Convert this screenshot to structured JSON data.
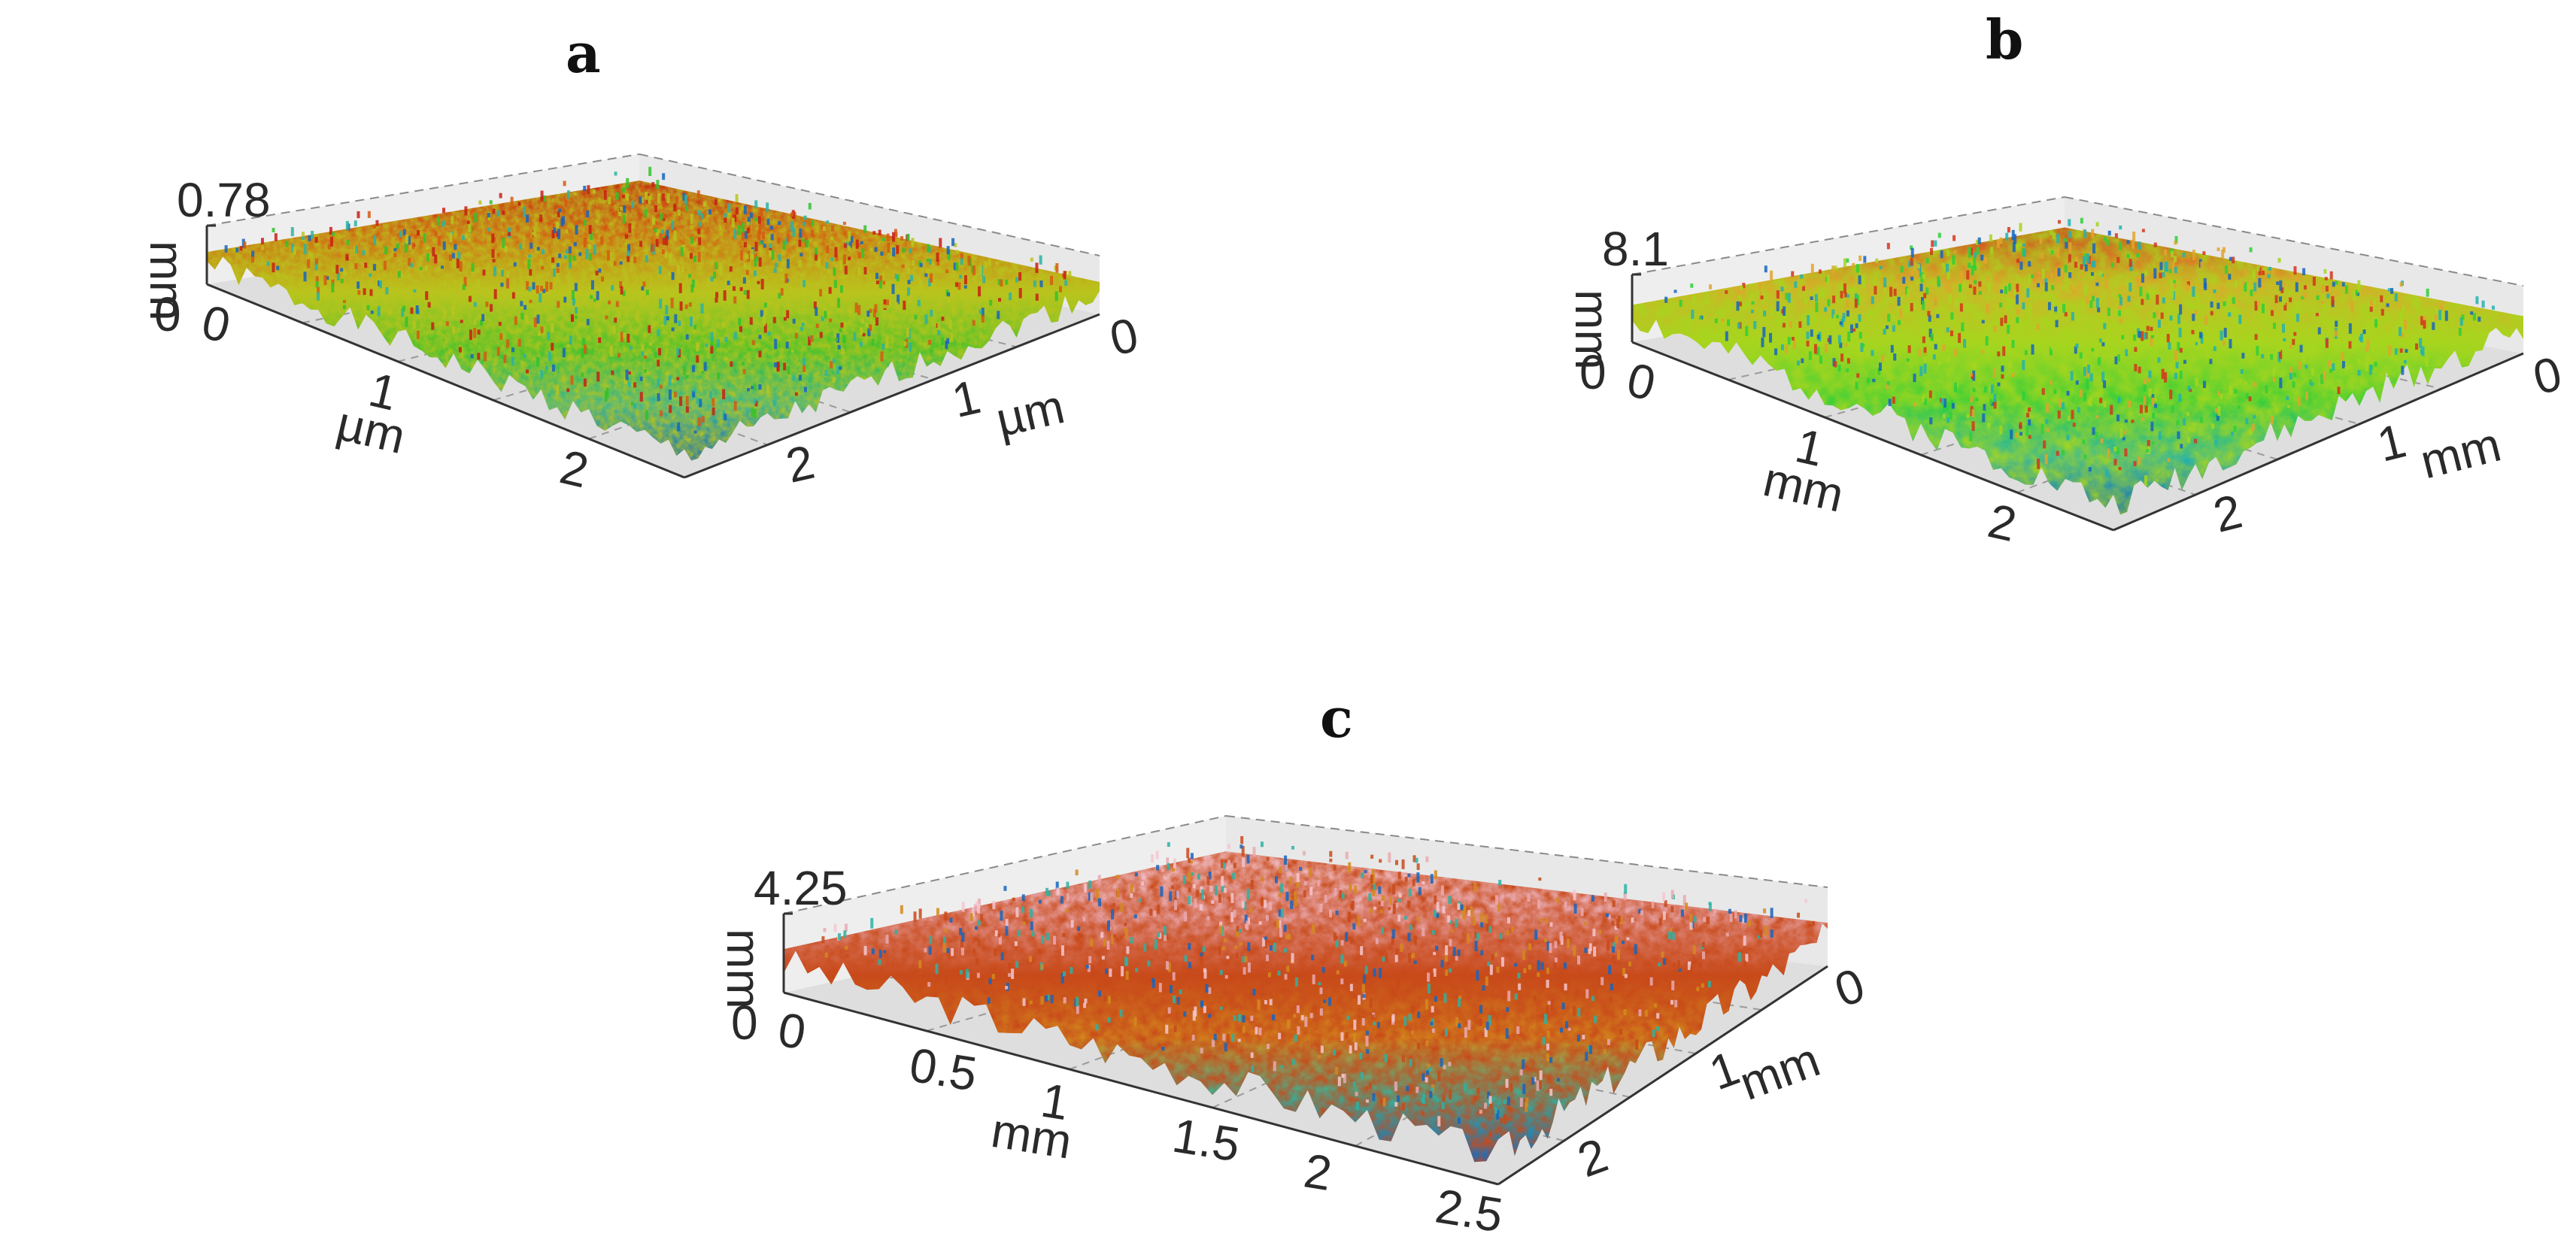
{
  "panels": [
    {
      "label": "a",
      "z_max": "0.78",
      "z_min": "0",
      "z_unit": "mm",
      "x_ticks": [
        "0",
        "1",
        "2"
      ],
      "x_unit": "µm",
      "y_ticks": [
        "0",
        "1",
        "2"
      ],
      "y_unit": "µm",
      "colormap": [
        "#1565c0",
        "#2bb3a3",
        "#34c22d",
        "#b9c41d",
        "#d65a12",
        "#c81e14"
      ]
    },
    {
      "label": "b",
      "z_max": "8.1",
      "z_min": "0",
      "z_unit": "mm",
      "x_ticks": [
        "0",
        "1",
        "2"
      ],
      "x_unit": "mm",
      "y_ticks": [
        "0",
        "1",
        "2"
      ],
      "y_unit": "mm",
      "colormap": [
        "#1565c0",
        "#23b2b0",
        "#2fcf3a",
        "#a7d51e",
        "#e0a52b",
        "#d4351c"
      ]
    },
    {
      "label": "c",
      "z_max": "4.25",
      "z_min": "0",
      "z_unit": "mm",
      "x_ticks": [
        "0",
        "0.5",
        "1",
        "1.5",
        "2",
        "2.5"
      ],
      "x_unit": "mm",
      "y_ticks": [
        "0",
        "1",
        "2"
      ],
      "y_unit": "mm",
      "colormap": [
        "#1565c0",
        "#2bb3a3",
        "#d38a1d",
        "#c84a1a",
        "#e9a9b0",
        "#f4c7cf"
      ]
    }
  ]
}
